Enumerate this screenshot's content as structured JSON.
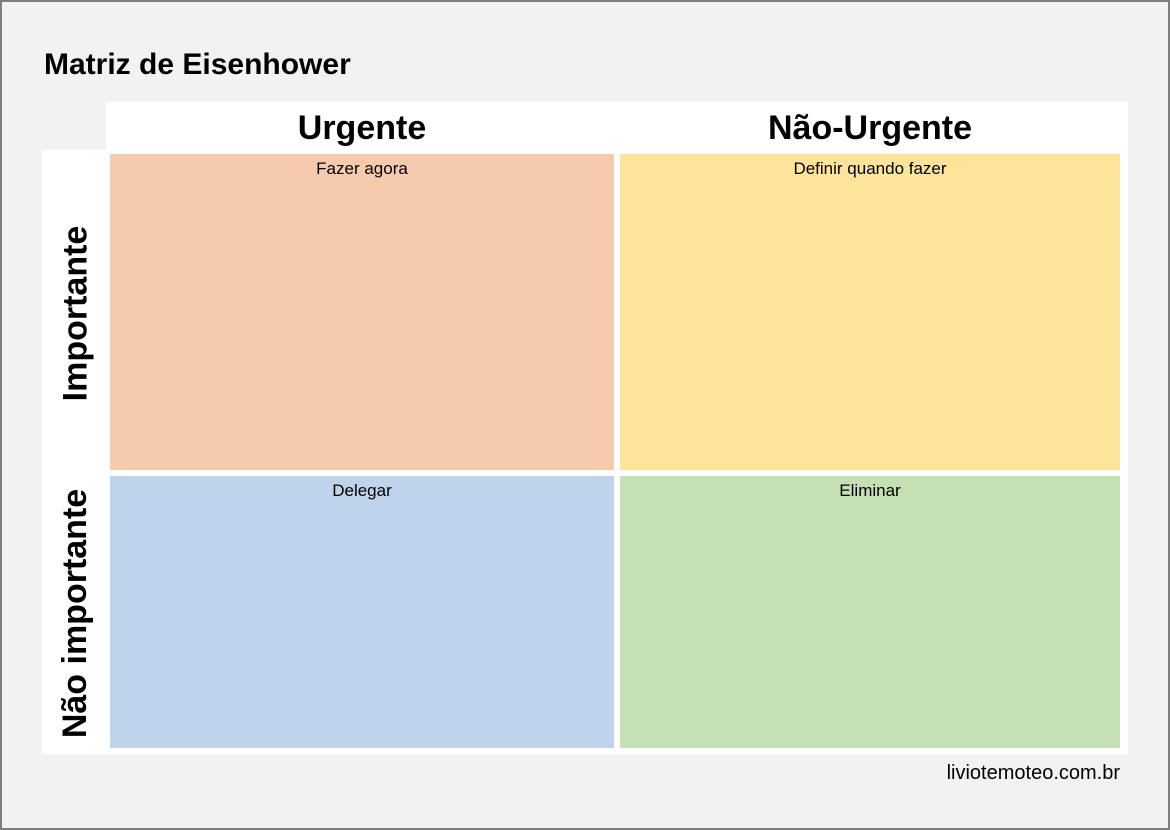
{
  "title": "Matriz de Eisenhower",
  "columns": [
    "Urgente",
    "Não-Urgente"
  ],
  "rows": [
    "Importante",
    "Não importante"
  ],
  "quadrants": [
    {
      "label": "Fazer agora",
      "color": "#f6cbad"
    },
    {
      "label": "Definir quando fazer",
      "color": "#fde49a"
    },
    {
      "label": "Delegar",
      "color": "#bfd4ec"
    },
    {
      "label": "Eliminar",
      "color": "#c5e0b3"
    }
  ],
  "footer": "liviotemoteo.com.br"
}
